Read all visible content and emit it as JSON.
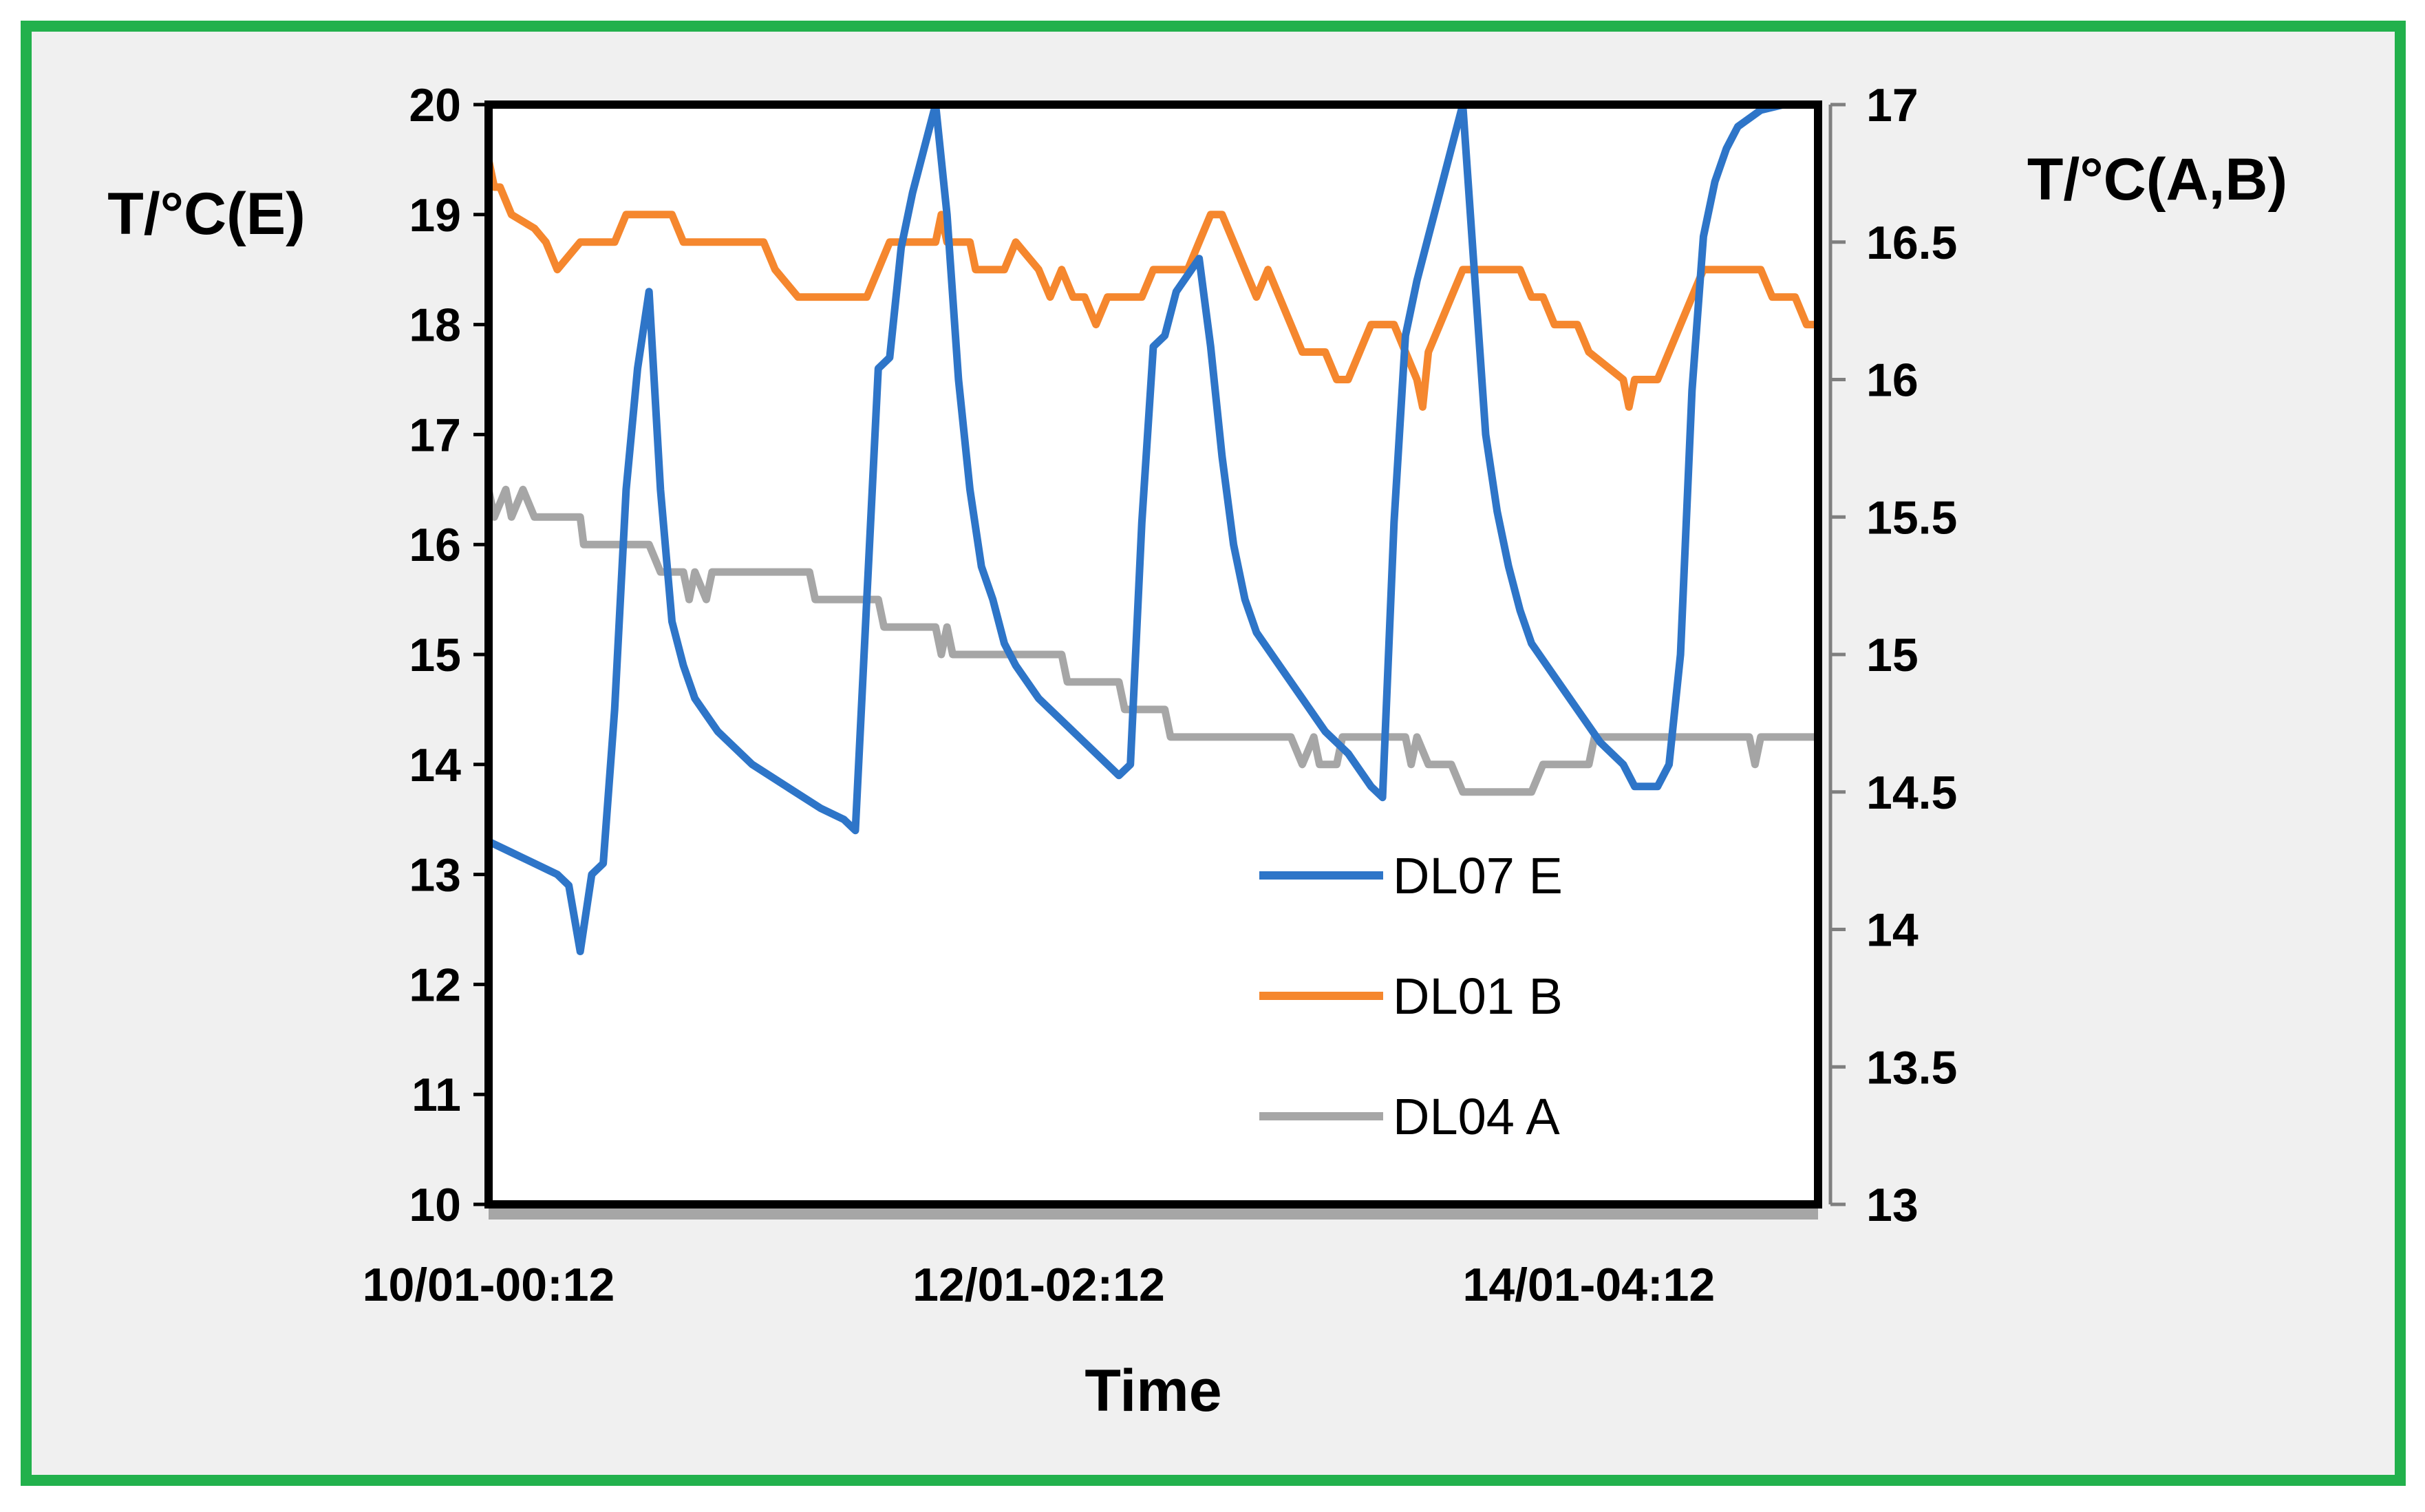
{
  "chart_data": {
    "type": "line",
    "xlabel": "Time",
    "ylabel_left": "T/°C(E)",
    "ylabel_right": "T/°C(A,B)",
    "x_ticklabels": [
      "10/01-00:12",
      "12/01-02:12",
      "14/01-04:12"
    ],
    "x_tick_positions_index": [
      0,
      48,
      96
    ],
    "x_range": [
      0,
      116
    ],
    "ylim_left": [
      10,
      20
    ],
    "ylim_right": [
      13,
      17
    ],
    "yticks_left": [
      "10",
      "11",
      "12",
      "13",
      "14",
      "15",
      "16",
      "17",
      "18",
      "19",
      "20"
    ],
    "yticks_right": [
      "13",
      "13.5",
      "14",
      "14.5",
      "15",
      "15.5",
      "16",
      "16.5",
      "17"
    ],
    "legend_position": "lower-right",
    "series": [
      {
        "name": "DL07 E",
        "axis": "left",
        "color": "#2e75c8",
        "points": [
          [
            0,
            13.3
          ],
          [
            2,
            13.2
          ],
          [
            4,
            13.1
          ],
          [
            6,
            13.0
          ],
          [
            7,
            12.9
          ],
          [
            8,
            12.3
          ],
          [
            9,
            13.0
          ],
          [
            10,
            13.1
          ],
          [
            11,
            14.5
          ],
          [
            12,
            16.5
          ],
          [
            13,
            17.6
          ],
          [
            14,
            18.3
          ],
          [
            15,
            16.5
          ],
          [
            16,
            15.3
          ],
          [
            17,
            14.9
          ],
          [
            18,
            14.6
          ],
          [
            20,
            14.3
          ],
          [
            23,
            14.0
          ],
          [
            26,
            13.8
          ],
          [
            29,
            13.6
          ],
          [
            31,
            13.5
          ],
          [
            32,
            13.4
          ],
          [
            33,
            15.5
          ],
          [
            34,
            17.6
          ],
          [
            35,
            17.7
          ],
          [
            36,
            18.7
          ],
          [
            37,
            19.2
          ],
          [
            38,
            19.6
          ],
          [
            39,
            20.0
          ],
          [
            40,
            19.0
          ],
          [
            41,
            17.5
          ],
          [
            42,
            16.5
          ],
          [
            43,
            15.8
          ],
          [
            44,
            15.5
          ],
          [
            45,
            15.1
          ],
          [
            46,
            14.9
          ],
          [
            48,
            14.6
          ],
          [
            50,
            14.4
          ],
          [
            52,
            14.2
          ],
          [
            54,
            14.0
          ],
          [
            55,
            13.9
          ],
          [
            56,
            14.0
          ],
          [
            57,
            16.2
          ],
          [
            58,
            17.8
          ],
          [
            59,
            17.9
          ],
          [
            60,
            18.3
          ],
          [
            62,
            18.6
          ],
          [
            63,
            17.8
          ],
          [
            64,
            16.8
          ],
          [
            65,
            16.0
          ],
          [
            66,
            15.5
          ],
          [
            67,
            15.2
          ],
          [
            69,
            14.9
          ],
          [
            71,
            14.6
          ],
          [
            73,
            14.3
          ],
          [
            75,
            14.1
          ],
          [
            77,
            13.8
          ],
          [
            78,
            13.7
          ],
          [
            79,
            16.2
          ],
          [
            80,
            17.9
          ],
          [
            81,
            18.4
          ],
          [
            82,
            18.8
          ],
          [
            83,
            19.2
          ],
          [
            84,
            19.6
          ],
          [
            85,
            20.0
          ],
          [
            86,
            18.5
          ],
          [
            87,
            17.0
          ],
          [
            88,
            16.3
          ],
          [
            89,
            15.8
          ],
          [
            90,
            15.4
          ],
          [
            91,
            15.1
          ],
          [
            93,
            14.8
          ],
          [
            95,
            14.5
          ],
          [
            97,
            14.2
          ],
          [
            99,
            14.0
          ],
          [
            100,
            13.8
          ],
          [
            102,
            13.8
          ],
          [
            103,
            14.0
          ],
          [
            104,
            15.0
          ],
          [
            105,
            17.4
          ],
          [
            106,
            18.8
          ],
          [
            107,
            19.3
          ],
          [
            108,
            19.6
          ],
          [
            109,
            19.8
          ],
          [
            111,
            19.95
          ],
          [
            113,
            20.0
          ],
          [
            116,
            20.0
          ]
        ]
      },
      {
        "name": "DL01 B",
        "axis": "right",
        "color": "#f5872e",
        "points": [
          [
            0,
            16.8
          ],
          [
            0.5,
            16.7
          ],
          [
            1,
            16.7
          ],
          [
            2,
            16.6
          ],
          [
            4,
            16.55
          ],
          [
            5,
            16.5
          ],
          [
            6,
            16.4
          ],
          [
            8,
            16.5
          ],
          [
            11,
            16.5
          ],
          [
            12,
            16.6
          ],
          [
            16,
            16.6
          ],
          [
            17,
            16.5
          ],
          [
            24,
            16.5
          ],
          [
            25,
            16.4
          ],
          [
            27,
            16.3
          ],
          [
            33,
            16.3
          ],
          [
            34,
            16.4
          ],
          [
            35,
            16.5
          ],
          [
            39,
            16.5
          ],
          [
            39.5,
            16.6
          ],
          [
            40,
            16.5
          ],
          [
            42,
            16.5
          ],
          [
            42.5,
            16.4
          ],
          [
            45,
            16.4
          ],
          [
            46,
            16.5
          ],
          [
            48,
            16.4
          ],
          [
            49,
            16.3
          ],
          [
            50,
            16.4
          ],
          [
            51,
            16.3
          ],
          [
            52,
            16.3
          ],
          [
            53,
            16.2
          ],
          [
            54,
            16.3
          ],
          [
            57,
            16.3
          ],
          [
            58,
            16.4
          ],
          [
            61,
            16.4
          ],
          [
            62,
            16.5
          ],
          [
            63,
            16.6
          ],
          [
            64,
            16.6
          ],
          [
            65,
            16.5
          ],
          [
            66,
            16.4
          ],
          [
            67,
            16.3
          ],
          [
            68,
            16.4
          ],
          [
            69,
            16.3
          ],
          [
            70,
            16.2
          ],
          [
            71,
            16.1
          ],
          [
            73,
            16.1
          ],
          [
            74,
            16.0
          ],
          [
            75,
            16.0
          ],
          [
            76,
            16.1
          ],
          [
            77,
            16.2
          ],
          [
            79,
            16.2
          ],
          [
            80,
            16.1
          ],
          [
            81,
            16.0
          ],
          [
            81.5,
            15.9
          ],
          [
            82,
            16.1
          ],
          [
            83,
            16.2
          ],
          [
            84,
            16.3
          ],
          [
            85,
            16.4
          ],
          [
            90,
            16.4
          ],
          [
            91,
            16.3
          ],
          [
            92,
            16.3
          ],
          [
            93,
            16.2
          ],
          [
            95,
            16.2
          ],
          [
            96,
            16.1
          ],
          [
            99,
            16.0
          ],
          [
            99.5,
            15.9
          ],
          [
            100,
            16.0
          ],
          [
            102,
            16.0
          ],
          [
            103,
            16.1
          ],
          [
            104,
            16.2
          ],
          [
            105,
            16.3
          ],
          [
            106,
            16.4
          ],
          [
            111,
            16.4
          ],
          [
            112,
            16.3
          ],
          [
            114,
            16.3
          ],
          [
            115,
            16.2
          ],
          [
            116,
            16.2
          ]
        ]
      },
      {
        "name": "DL04 A",
        "axis": "right",
        "color": "#a6a6a6",
        "points": [
          [
            0,
            15.6
          ],
          [
            0.5,
            15.5
          ],
          [
            1.5,
            15.6
          ],
          [
            2,
            15.5
          ],
          [
            3,
            15.6
          ],
          [
            4,
            15.5
          ],
          [
            8,
            15.5
          ],
          [
            8.3,
            15.4
          ],
          [
            14,
            15.4
          ],
          [
            15,
            15.3
          ],
          [
            17,
            15.3
          ],
          [
            17.5,
            15.2
          ],
          [
            18,
            15.3
          ],
          [
            19,
            15.2
          ],
          [
            19.5,
            15.3
          ],
          [
            28,
            15.3
          ],
          [
            28.5,
            15.2
          ],
          [
            34,
            15.2
          ],
          [
            34.5,
            15.1
          ],
          [
            38,
            15.1
          ],
          [
            39,
            15.1
          ],
          [
            39.5,
            15.0
          ],
          [
            40,
            15.1
          ],
          [
            40.5,
            15.0
          ],
          [
            50,
            15.0
          ],
          [
            50.5,
            14.9
          ],
          [
            55,
            14.9
          ],
          [
            55.5,
            14.8
          ],
          [
            59,
            14.8
          ],
          [
            59.5,
            14.7
          ],
          [
            70,
            14.7
          ],
          [
            71,
            14.6
          ],
          [
            72,
            14.7
          ],
          [
            72.5,
            14.6
          ],
          [
            74,
            14.6
          ],
          [
            74.5,
            14.7
          ],
          [
            80,
            14.7
          ],
          [
            80.5,
            14.6
          ],
          [
            81,
            14.7
          ],
          [
            82,
            14.6
          ],
          [
            84,
            14.6
          ],
          [
            85,
            14.5
          ],
          [
            91,
            14.5
          ],
          [
            92,
            14.6
          ],
          [
            96,
            14.6
          ],
          [
            96.5,
            14.7
          ],
          [
            110,
            14.7
          ],
          [
            110.5,
            14.6
          ],
          [
            111,
            14.7
          ],
          [
            116,
            14.7
          ]
        ]
      }
    ]
  }
}
